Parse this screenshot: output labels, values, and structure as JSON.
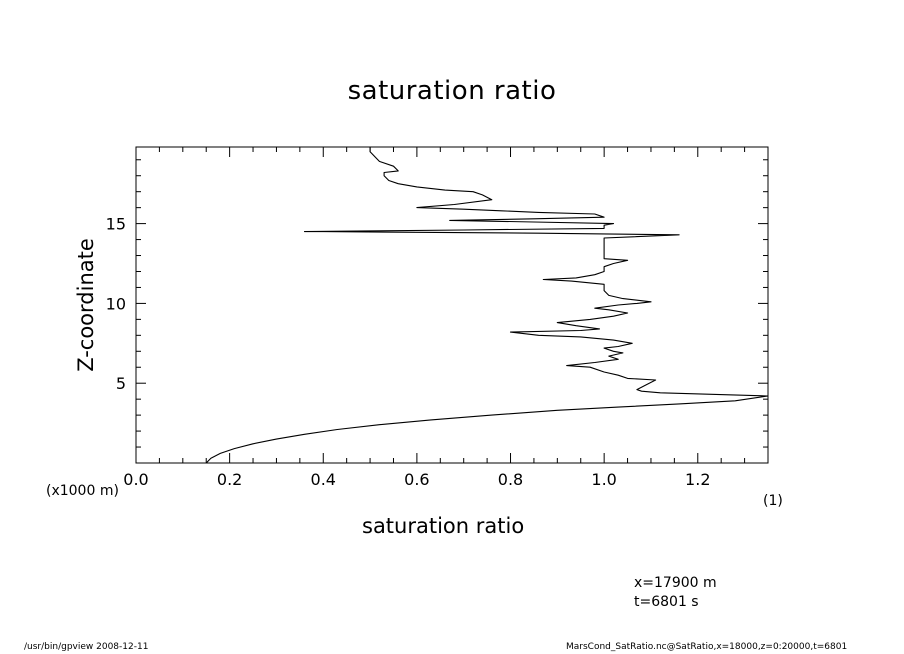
{
  "title": "saturation ratio",
  "axis_units": {
    "y_units": "(x1000 m)",
    "x_units": "(1)"
  },
  "location": {
    "x": "x=17900  m",
    "t": "t=6801  s"
  },
  "footer": {
    "left": "/usr/bin/gpview   2008-12-11",
    "right": "MarsCond_SatRatio.nc@SatRatio,x=18000,z=0:20000,t=6801"
  },
  "chart_data": {
    "type": "line",
    "title": "saturation ratio",
    "xlabel": "saturation ratio",
    "ylabel": "Z-coordinate",
    "xlim": [
      0.0,
      1.35
    ],
    "ylim": [
      0.0,
      19.8
    ],
    "x_ticks": [
      "0.0",
      "0.2",
      "0.4",
      "0.6",
      "0.8",
      "1.0",
      "1.2"
    ],
    "y_ticks": [
      "5",
      "10",
      "15"
    ],
    "grid": false,
    "series": [
      {
        "points": [
          [
            0.15,
            0.0
          ],
          [
            0.16,
            0.3
          ],
          [
            0.18,
            0.6
          ],
          [
            0.21,
            0.9
          ],
          [
            0.25,
            1.2
          ],
          [
            0.3,
            1.5
          ],
          [
            0.36,
            1.8
          ],
          [
            0.43,
            2.1
          ],
          [
            0.52,
            2.4
          ],
          [
            0.63,
            2.7
          ],
          [
            0.76,
            3.0
          ],
          [
            0.9,
            3.3
          ],
          [
            1.03,
            3.5
          ],
          [
            1.16,
            3.7
          ],
          [
            1.28,
            3.9
          ],
          [
            1.35,
            4.2
          ],
          [
            1.12,
            4.4
          ],
          [
            1.08,
            4.5
          ],
          [
            1.07,
            4.6
          ],
          [
            1.09,
            4.9
          ],
          [
            1.11,
            5.2
          ],
          [
            1.05,
            5.3
          ],
          [
            1.03,
            5.5
          ],
          [
            1.0,
            5.7
          ],
          [
            0.97,
            6.0
          ],
          [
            0.92,
            6.1
          ],
          [
            0.98,
            6.3
          ],
          [
            1.03,
            6.5
          ],
          [
            1.01,
            6.7
          ],
          [
            1.04,
            6.9
          ],
          [
            1.02,
            7.0
          ],
          [
            1.0,
            7.2
          ],
          [
            1.03,
            7.3
          ],
          [
            1.06,
            7.5
          ],
          [
            1.02,
            7.7
          ],
          [
            0.95,
            7.9
          ],
          [
            0.86,
            8.0
          ],
          [
            0.8,
            8.2
          ],
          [
            0.95,
            8.3
          ],
          [
            0.99,
            8.4
          ],
          [
            0.94,
            8.6
          ],
          [
            0.9,
            8.8
          ],
          [
            0.97,
            9.0
          ],
          [
            1.02,
            9.2
          ],
          [
            1.05,
            9.4
          ],
          [
            1.01,
            9.6
          ],
          [
            0.98,
            9.7
          ],
          [
            1.03,
            9.9
          ],
          [
            1.07,
            10.0
          ],
          [
            1.1,
            10.1
          ],
          [
            1.04,
            10.3
          ],
          [
            1.01,
            10.5
          ],
          [
            1.0,
            10.8
          ],
          [
            1.0,
            11.2
          ],
          [
            0.93,
            11.4
          ],
          [
            0.87,
            11.5
          ],
          [
            0.94,
            11.6
          ],
          [
            0.98,
            11.8
          ],
          [
            1.0,
            12.0
          ],
          [
            1.0,
            12.3
          ],
          [
            1.02,
            12.5
          ],
          [
            1.05,
            12.7
          ],
          [
            1.0,
            12.8
          ],
          [
            1.0,
            13.4
          ],
          [
            1.0,
            13.8
          ],
          [
            1.0,
            14.1
          ],
          [
            1.16,
            14.3
          ],
          [
            0.86,
            14.4
          ],
          [
            0.4,
            14.5
          ],
          [
            0.36,
            14.5
          ],
          [
            0.7,
            14.6
          ],
          [
            1.0,
            14.7
          ],
          [
            1.0,
            14.9
          ],
          [
            1.02,
            15.0
          ],
          [
            0.85,
            15.1
          ],
          [
            0.67,
            15.2
          ],
          [
            0.85,
            15.3
          ],
          [
            1.0,
            15.4
          ],
          [
            0.98,
            15.6
          ],
          [
            0.86,
            15.7
          ],
          [
            0.78,
            15.8
          ],
          [
            0.7,
            15.9
          ],
          [
            0.6,
            16.0
          ],
          [
            0.68,
            16.2
          ],
          [
            0.76,
            16.5
          ],
          [
            0.74,
            16.8
          ],
          [
            0.72,
            17.0
          ],
          [
            0.66,
            17.1
          ],
          [
            0.6,
            17.3
          ],
          [
            0.56,
            17.5
          ],
          [
            0.54,
            17.7
          ],
          [
            0.53,
            18.0
          ],
          [
            0.53,
            18.2
          ],
          [
            0.56,
            18.3
          ],
          [
            0.55,
            18.6
          ],
          [
            0.52,
            18.9
          ],
          [
            0.51,
            19.2
          ],
          [
            0.5,
            19.5
          ],
          [
            0.5,
            19.8
          ]
        ]
      }
    ]
  }
}
